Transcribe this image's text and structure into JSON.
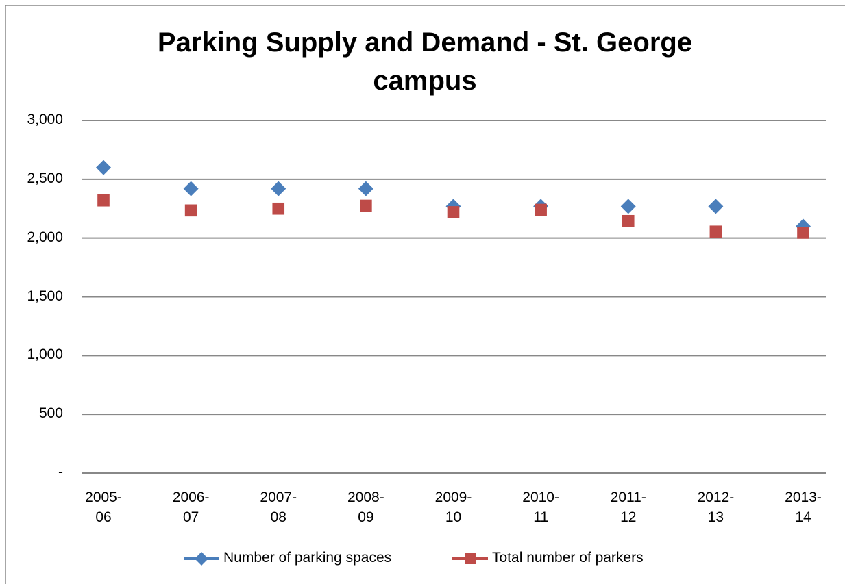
{
  "chart_data": {
    "type": "line",
    "title": "Parking Supply and Demand - St. George campus",
    "categories": [
      "2005-06",
      "2006-07",
      "2007-08",
      "2008-09",
      "2009-10",
      "2010-11",
      "2011-12",
      "2012-13",
      "2013-14"
    ],
    "series": [
      {
        "name": "Number of parking spaces",
        "color": "#4a7ebb",
        "marker": "diamond",
        "values": [
          2600,
          2420,
          2420,
          2420,
          2270,
          2270,
          2270,
          2270,
          2100
        ]
      },
      {
        "name": "Total number of parkers",
        "color": "#be4b48",
        "marker": "square",
        "values": [
          2320,
          2235,
          2250,
          2275,
          2220,
          2240,
          2145,
          2055,
          2045
        ]
      }
    ],
    "ylim": [
      0,
      3000
    ],
    "yticks": [
      {
        "value": 0,
        "label": "-"
      },
      500,
      {
        "value": 1000,
        "label": "1,000"
      },
      {
        "value": 1500,
        "label": "1,500"
      },
      {
        "value": 2000,
        "label": "2,000"
      },
      {
        "value": 2500,
        "label": "2,500"
      },
      {
        "value": 3000,
        "label": "3,000"
      }
    ],
    "grid": true,
    "legend": "bottom"
  }
}
